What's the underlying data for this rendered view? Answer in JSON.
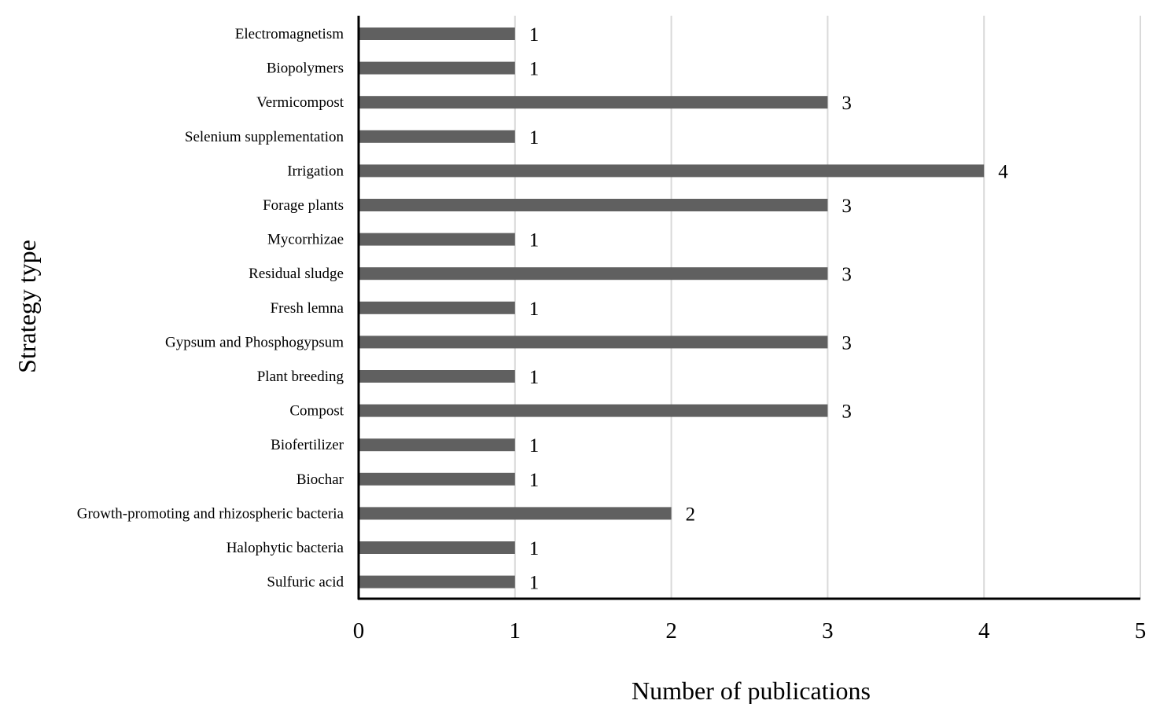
{
  "chart_data": {
    "type": "bar",
    "orientation": "horizontal",
    "title": "",
    "xlabel": "Number of publications",
    "ylabel": "Strategy type",
    "categories": [
      "Electromagnetism",
      "Biopolymers",
      "Vermicompost",
      "Selenium supplementation",
      "Irrigation",
      "Forage plants",
      "Mycorrhizae",
      "Residual sludge",
      "Fresh lemna",
      "Gypsum and Phosphogypsum",
      "Plant breeding",
      "Compost",
      "Biofertilizer",
      "Biochar",
      "Growth-promoting and rhizospheric bacteria",
      "Halophytic bacteria",
      "Sulfuric acid"
    ],
    "values": [
      1,
      1,
      3,
      1,
      4,
      3,
      1,
      3,
      1,
      3,
      1,
      3,
      1,
      1,
      2,
      1,
      1
    ],
    "xlim": [
      0,
      5
    ],
    "xticks": [
      0,
      1,
      2,
      3,
      4,
      5
    ],
    "grid": "vertical",
    "data_labels": true,
    "bar_color": "#606060",
    "grid_color": "#d9d9d9",
    "axis_color": "#000000"
  }
}
